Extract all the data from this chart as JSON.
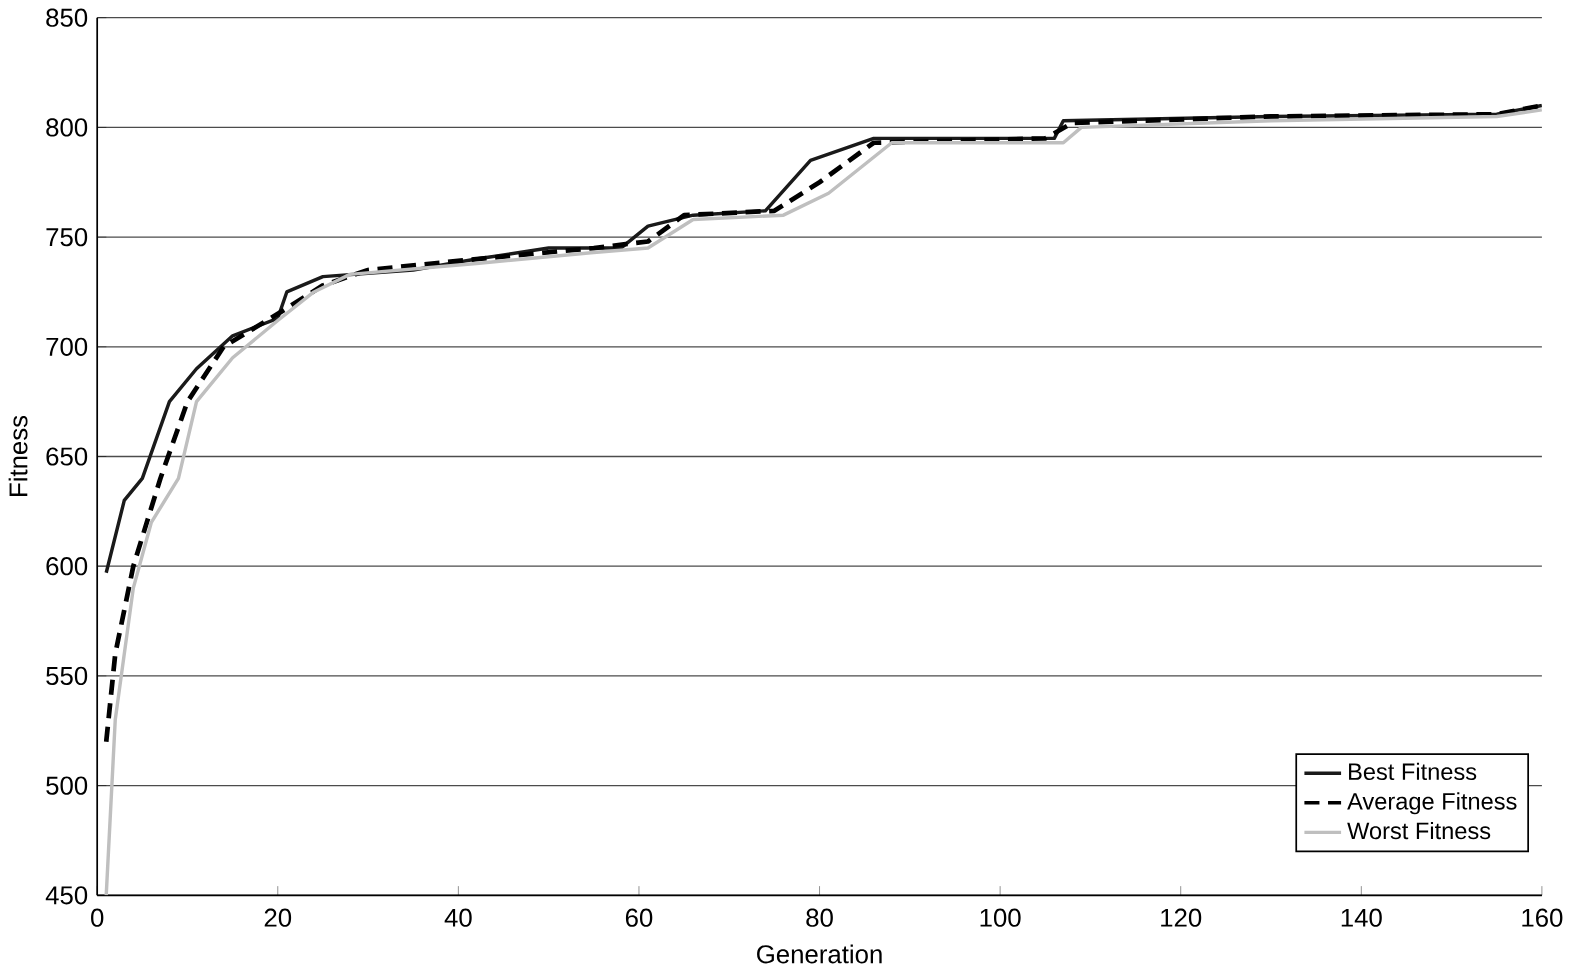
{
  "chart_data": {
    "type": "line",
    "xlabel": "Generation",
    "ylabel": "Fitness",
    "xlim": [
      0,
      160
    ],
    "ylim": [
      450,
      850
    ],
    "xticks": [
      0,
      20,
      40,
      60,
      80,
      100,
      120,
      140,
      160
    ],
    "yticks": [
      450,
      500,
      550,
      600,
      650,
      700,
      750,
      800,
      850
    ],
    "grid": "y",
    "legend": "bottom right",
    "marker": "none",
    "series": [
      {
        "name": "Best Fitness",
        "color": "#1a1a1a",
        "line_style": "solid",
        "x": [
          1,
          3,
          5,
          8,
          11,
          15,
          20,
          21,
          25,
          35,
          42,
          50,
          58,
          61,
          66,
          74,
          79,
          86,
          106,
          107,
          130,
          155,
          160
        ],
        "values": [
          597,
          630,
          640,
          675,
          690,
          705,
          713,
          725,
          732,
          735,
          740,
          745,
          745,
          755,
          760,
          762,
          785,
          795,
          795,
          803,
          805,
          806,
          810
        ]
      },
      {
        "name": "Average Fitness",
        "color": "#000000",
        "line_style": "dashed",
        "x": [
          1,
          2,
          4,
          7,
          10,
          14,
          20,
          25,
          30,
          42,
          55,
          61,
          65,
          75,
          80,
          86,
          105,
          108,
          130,
          155,
          160
        ],
        "values": [
          520,
          560,
          600,
          640,
          675,
          700,
          715,
          728,
          735,
          740,
          745,
          748,
          760,
          762,
          775,
          793,
          795,
          802,
          805,
          806,
          810
        ]
      },
      {
        "name": "Worst Fitness",
        "color": "#bfbfbf",
        "line_style": "solid",
        "x": [
          1,
          2,
          4,
          6,
          9,
          11,
          15,
          20,
          24,
          28,
          42,
          55,
          61,
          66,
          76,
          81,
          88,
          107,
          109,
          130,
          155,
          160
        ],
        "values": [
          450,
          530,
          590,
          620,
          640,
          675,
          695,
          712,
          725,
          733,
          738,
          743,
          745,
          758,
          760,
          770,
          793,
          793,
          800,
          803,
          805,
          808
        ]
      }
    ]
  }
}
